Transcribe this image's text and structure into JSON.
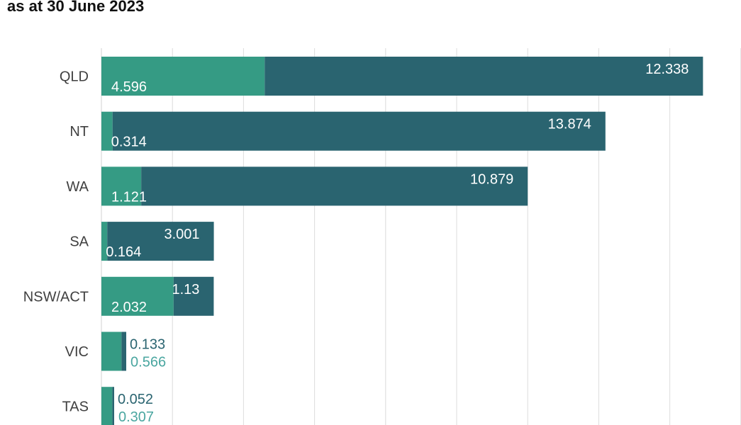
{
  "chart_data": {
    "type": "bar",
    "orientation": "horizontal",
    "stacked": true,
    "title": "as at 30 June 2023",
    "categories": [
      "QLD",
      "NT",
      "WA",
      "SA",
      "NSW/ACT",
      "VIC",
      "TAS"
    ],
    "series": [
      {
        "values": [
          4.596,
          0.314,
          1.121,
          0.164,
          2.032,
          0.566,
          0.307
        ],
        "color": "#359b84",
        "label_color": "#4aa6a0"
      },
      {
        "values": [
          12.338,
          13.874,
          10.879,
          3.001,
          1.13,
          0.133,
          0.052
        ],
        "color": "#2a6470",
        "label_color": "#2a6470"
      }
    ],
    "xlim": [
      0,
      18
    ],
    "grid": true,
    "legend": "none"
  }
}
